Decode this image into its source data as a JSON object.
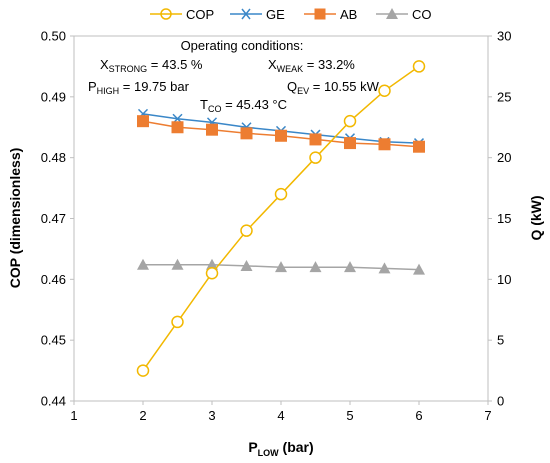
{
  "chart_data": {
    "type": "line",
    "x": [
      2,
      2.5,
      3,
      3.5,
      4,
      4.5,
      5,
      5.5,
      6
    ],
    "xlim": [
      1,
      7
    ],
    "xticks": [
      "1",
      "2",
      "3",
      "4",
      "5",
      "6",
      "7"
    ],
    "ylim_left": [
      0.44,
      0.5
    ],
    "yticks_left": [
      "0.44",
      "0.45",
      "0.46",
      "0.47",
      "0.48",
      "0.49",
      "0.50"
    ],
    "ylim_right": [
      0,
      30
    ],
    "yticks_right": [
      "0",
      "5",
      "10",
      "15",
      "20",
      "25",
      "30"
    ],
    "xlabel": {
      "main": "P",
      "sub": "LOW",
      "rest": " (bar)"
    },
    "ylabel_left": "COP (dimensionless)",
    "ylabel_right": "Q (kW)",
    "legend_position": "top",
    "grid": false,
    "series": [
      {
        "name": "COP",
        "axis": "left",
        "color": "#f2b800",
        "marker": "circle",
        "values": [
          0.445,
          0.453,
          0.461,
          0.468,
          0.474,
          0.48,
          0.486,
          0.491,
          0.495
        ]
      },
      {
        "name": "GE",
        "axis": "right",
        "color": "#3a87c8",
        "marker": "x",
        "values": [
          23.6,
          23.2,
          22.9,
          22.5,
          22.2,
          21.9,
          21.6,
          21.3,
          21.2
        ]
      },
      {
        "name": "AB",
        "axis": "right",
        "color": "#ed7d31",
        "marker": "square",
        "values": [
          23.0,
          22.5,
          22.3,
          22.0,
          21.8,
          21.5,
          21.2,
          21.1,
          20.9
        ]
      },
      {
        "name": "CO",
        "axis": "right",
        "color": "#a5a5a5",
        "marker": "triangle",
        "values": [
          11.2,
          11.2,
          11.2,
          11.1,
          11.0,
          11.0,
          11.0,
          10.9,
          10.8
        ]
      }
    ],
    "annotations": {
      "heading": "Operating conditions:",
      "x_strong": {
        "main": "X",
        "sub": "STRONG",
        "rest": " = 43.5 %"
      },
      "x_weak": {
        "main": "X",
        "sub": "WEAK",
        "rest": " = 33.2%"
      },
      "p_high": {
        "main": "P",
        "sub": "HIGH",
        "rest": " = 19.75 bar"
      },
      "q_ev": {
        "main": "Q",
        "sub": "EV",
        "rest": " = 10.55 kW"
      },
      "t_co": {
        "main": "T",
        "sub": "CO",
        "rest": " = 45.43 °C"
      }
    }
  }
}
